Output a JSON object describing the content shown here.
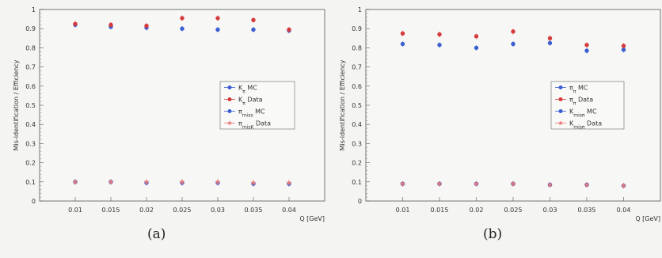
{
  "chart_data": [
    {
      "panel": "a",
      "caption": "(a)",
      "type": "scatter",
      "xlabel": "Q [GeV]",
      "ylabel": "Mis-identification / Efficiency",
      "xlim": [
        0.005,
        0.045
      ],
      "ylim": [
        0,
        1
      ],
      "x_ticks": [
        "0.01",
        "0.015",
        "0.02",
        "0.025",
        "0.03",
        "0.035",
        "0.04"
      ],
      "y_ticks": [
        "0",
        "0.1",
        "0.2",
        "0.3",
        "0.4",
        "0.5",
        "0.6",
        "0.7",
        "0.8",
        "0.9",
        "1"
      ],
      "legend_position": "right",
      "series": [
        {
          "name": "K_π MC",
          "color": "#3b5fd1",
          "marker": "circle",
          "x": [
            0.01,
            0.015,
            0.02,
            0.025,
            0.03,
            0.035,
            0.04
          ],
          "y": [
            0.92,
            0.91,
            0.905,
            0.9,
            0.895,
            0.895,
            0.89
          ]
        },
        {
          "name": "K_π Data",
          "color": "#d53b3b",
          "marker": "circle",
          "x": [
            0.01,
            0.015,
            0.02,
            0.025,
            0.03,
            0.035,
            0.04
          ],
          "y": [
            0.925,
            0.92,
            0.915,
            0.955,
            0.955,
            0.945,
            0.895
          ]
        },
        {
          "name": "π_miss MC",
          "color": "#3b5fd1",
          "marker": "circle",
          "x": [
            0.01,
            0.015,
            0.02,
            0.025,
            0.03,
            0.035,
            0.04
          ],
          "y": [
            0.1,
            0.1,
            0.095,
            0.095,
            0.095,
            0.09,
            0.09
          ]
        },
        {
          "name": "π_misK Data",
          "color": "#e87878",
          "marker": "star",
          "x": [
            0.01,
            0.015,
            0.02,
            0.025,
            0.03,
            0.035,
            0.04
          ],
          "y": [
            0.1,
            0.1,
            0.1,
            0.1,
            0.1,
            0.095,
            0.095
          ]
        }
      ]
    },
    {
      "panel": "b",
      "caption": "(b)",
      "type": "scatter",
      "xlabel": "Q [GeV]",
      "ylabel": "Mis-identification / Efficiency",
      "xlim": [
        0.005,
        0.045
      ],
      "ylim": [
        0,
        1
      ],
      "x_ticks": [
        "0.01",
        "0.015",
        "0.02",
        "0.025",
        "0.03",
        "0.035",
        "0.04"
      ],
      "y_ticks": [
        "0",
        "0.1",
        "0.2",
        "0.3",
        "0.4",
        "0.5",
        "0.6",
        "0.7",
        "0.8",
        "0.9",
        "1"
      ],
      "legend_position": "right",
      "series": [
        {
          "name": "π_π MC",
          "color": "#3b5fd1",
          "marker": "circle",
          "x": [
            0.01,
            0.015,
            0.02,
            0.025,
            0.03,
            0.035,
            0.04
          ],
          "y": [
            0.82,
            0.815,
            0.8,
            0.82,
            0.825,
            0.785,
            0.79
          ]
        },
        {
          "name": "π_π Data",
          "color": "#d53b3b",
          "marker": "circle",
          "x": [
            0.01,
            0.015,
            0.02,
            0.025,
            0.03,
            0.035,
            0.04
          ],
          "y": [
            0.875,
            0.87,
            0.86,
            0.885,
            0.85,
            0.815,
            0.81
          ]
        },
        {
          "name": "K_misπ MC",
          "color": "#3b5fd1",
          "marker": "circle",
          "x": [
            0.01,
            0.015,
            0.02,
            0.025,
            0.03,
            0.035,
            0.04
          ],
          "y": [
            0.09,
            0.09,
            0.09,
            0.09,
            0.085,
            0.085,
            0.08
          ]
        },
        {
          "name": "K_misπ Data",
          "color": "#e87878",
          "marker": "star",
          "x": [
            0.01,
            0.015,
            0.02,
            0.025,
            0.03,
            0.035,
            0.04
          ],
          "y": [
            0.09,
            0.09,
            0.09,
            0.09,
            0.085,
            0.085,
            0.08
          ]
        }
      ]
    }
  ]
}
